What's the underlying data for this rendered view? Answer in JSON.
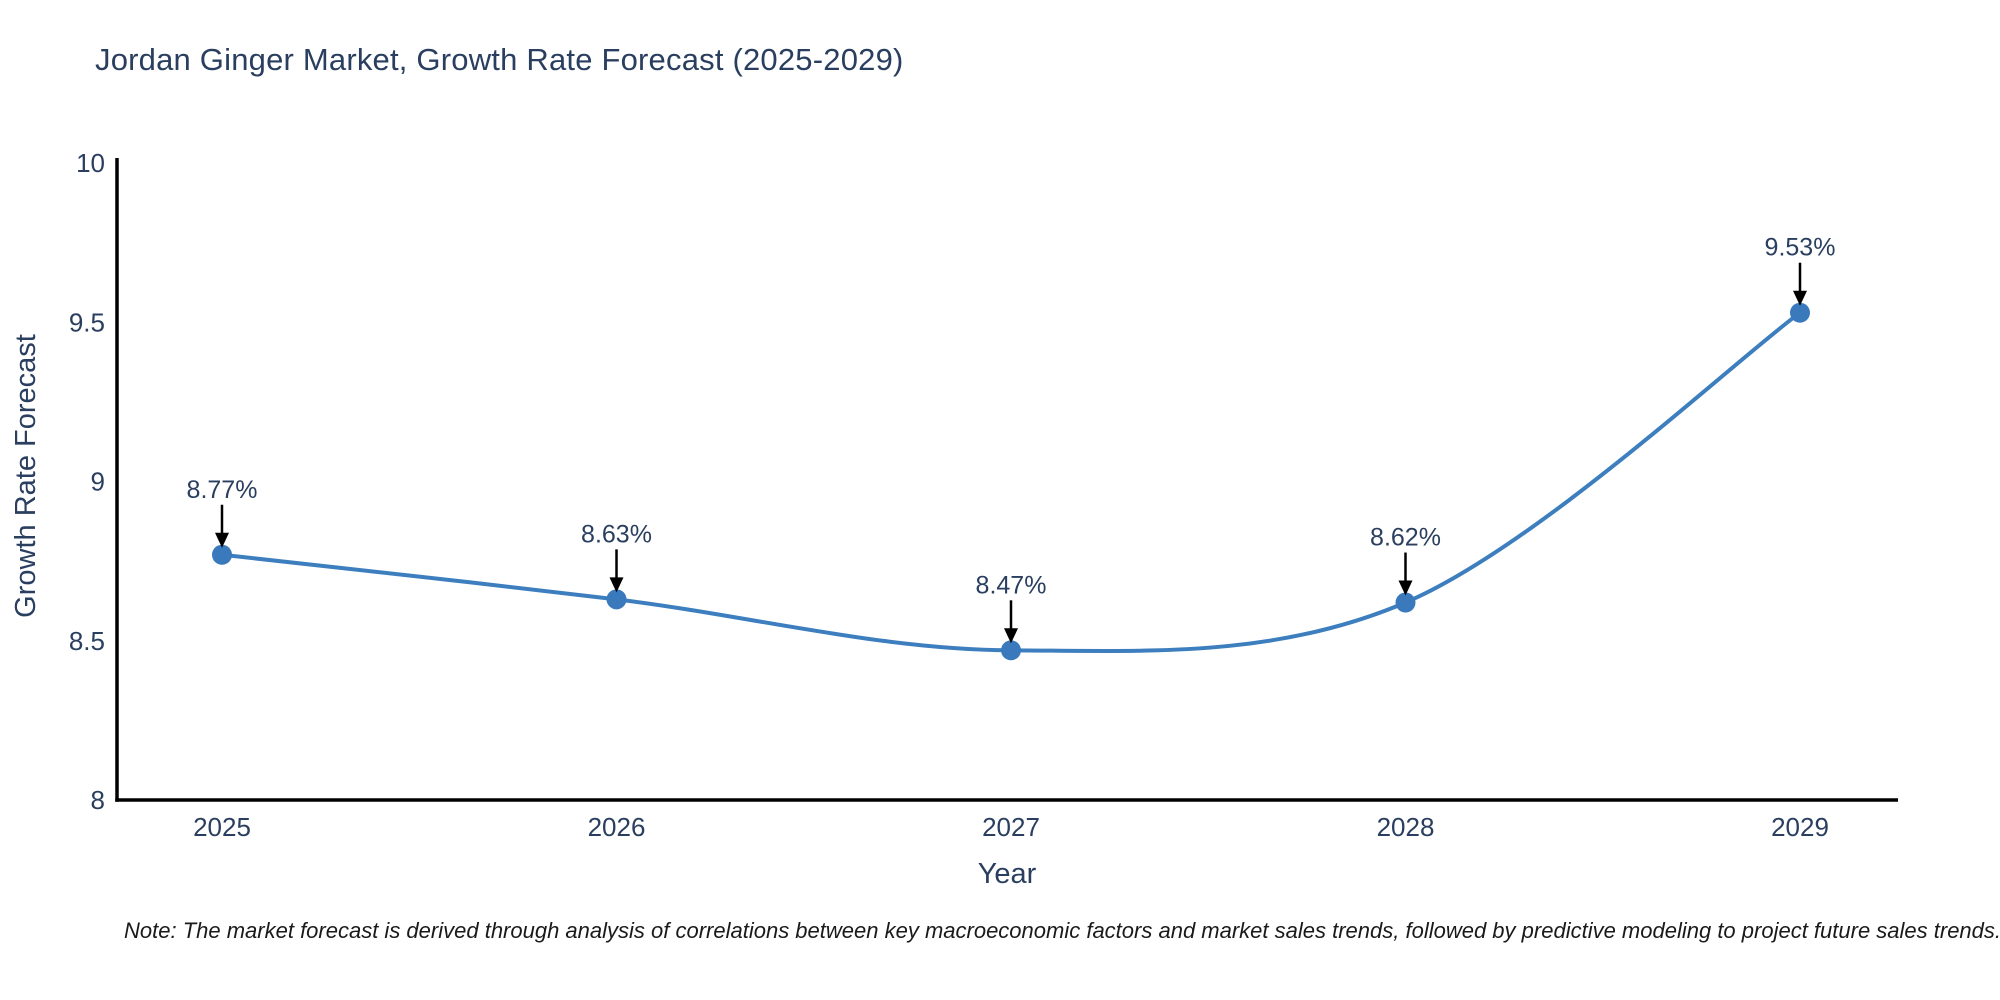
{
  "title": "Jordan Ginger Market, Growth Rate Forecast (2025-2029)",
  "note": "Note: The market forecast is derived through analysis of correlations between key macroeconomic factors and market sales trends, followed by predictive modeling to project future sales trends.",
  "colors": {
    "background": "#ffffff",
    "line": "#3d7ebf",
    "marker": "#3a7abc",
    "axis": "#000000",
    "tick_text": "#2a3f5f",
    "title_text": "#2a3f5f",
    "annotation_text": "#2a3f5f",
    "arrow": "#000000",
    "note_text": "#1a1a1a"
  },
  "chart_data": {
    "type": "line",
    "title": "Jordan Ginger Market, Growth Rate Forecast (2025-2029)",
    "xlabel": "Year",
    "ylabel": "Growth Rate Forecast",
    "categories": [
      "2025",
      "2026",
      "2027",
      "2028",
      "2029"
    ],
    "series": [
      {
        "name": "Growth Rate Forecast",
        "values": [
          8.77,
          8.63,
          8.47,
          8.62,
          9.53
        ],
        "point_labels": [
          "8.77%",
          "8.63%",
          "8.47%",
          "8.62%",
          "9.53%"
        ]
      }
    ],
    "ylim": [
      8,
      10
    ],
    "yticks": [
      10,
      9.5,
      9,
      8.5,
      8
    ],
    "ytick_labels": [
      "10",
      "9.5",
      "9",
      "8.5",
      "8"
    ],
    "grid": false,
    "legend_position": "none",
    "line_shape": "spline",
    "marker_style": "circle",
    "annotations": "value labels with down arrows above each point"
  }
}
